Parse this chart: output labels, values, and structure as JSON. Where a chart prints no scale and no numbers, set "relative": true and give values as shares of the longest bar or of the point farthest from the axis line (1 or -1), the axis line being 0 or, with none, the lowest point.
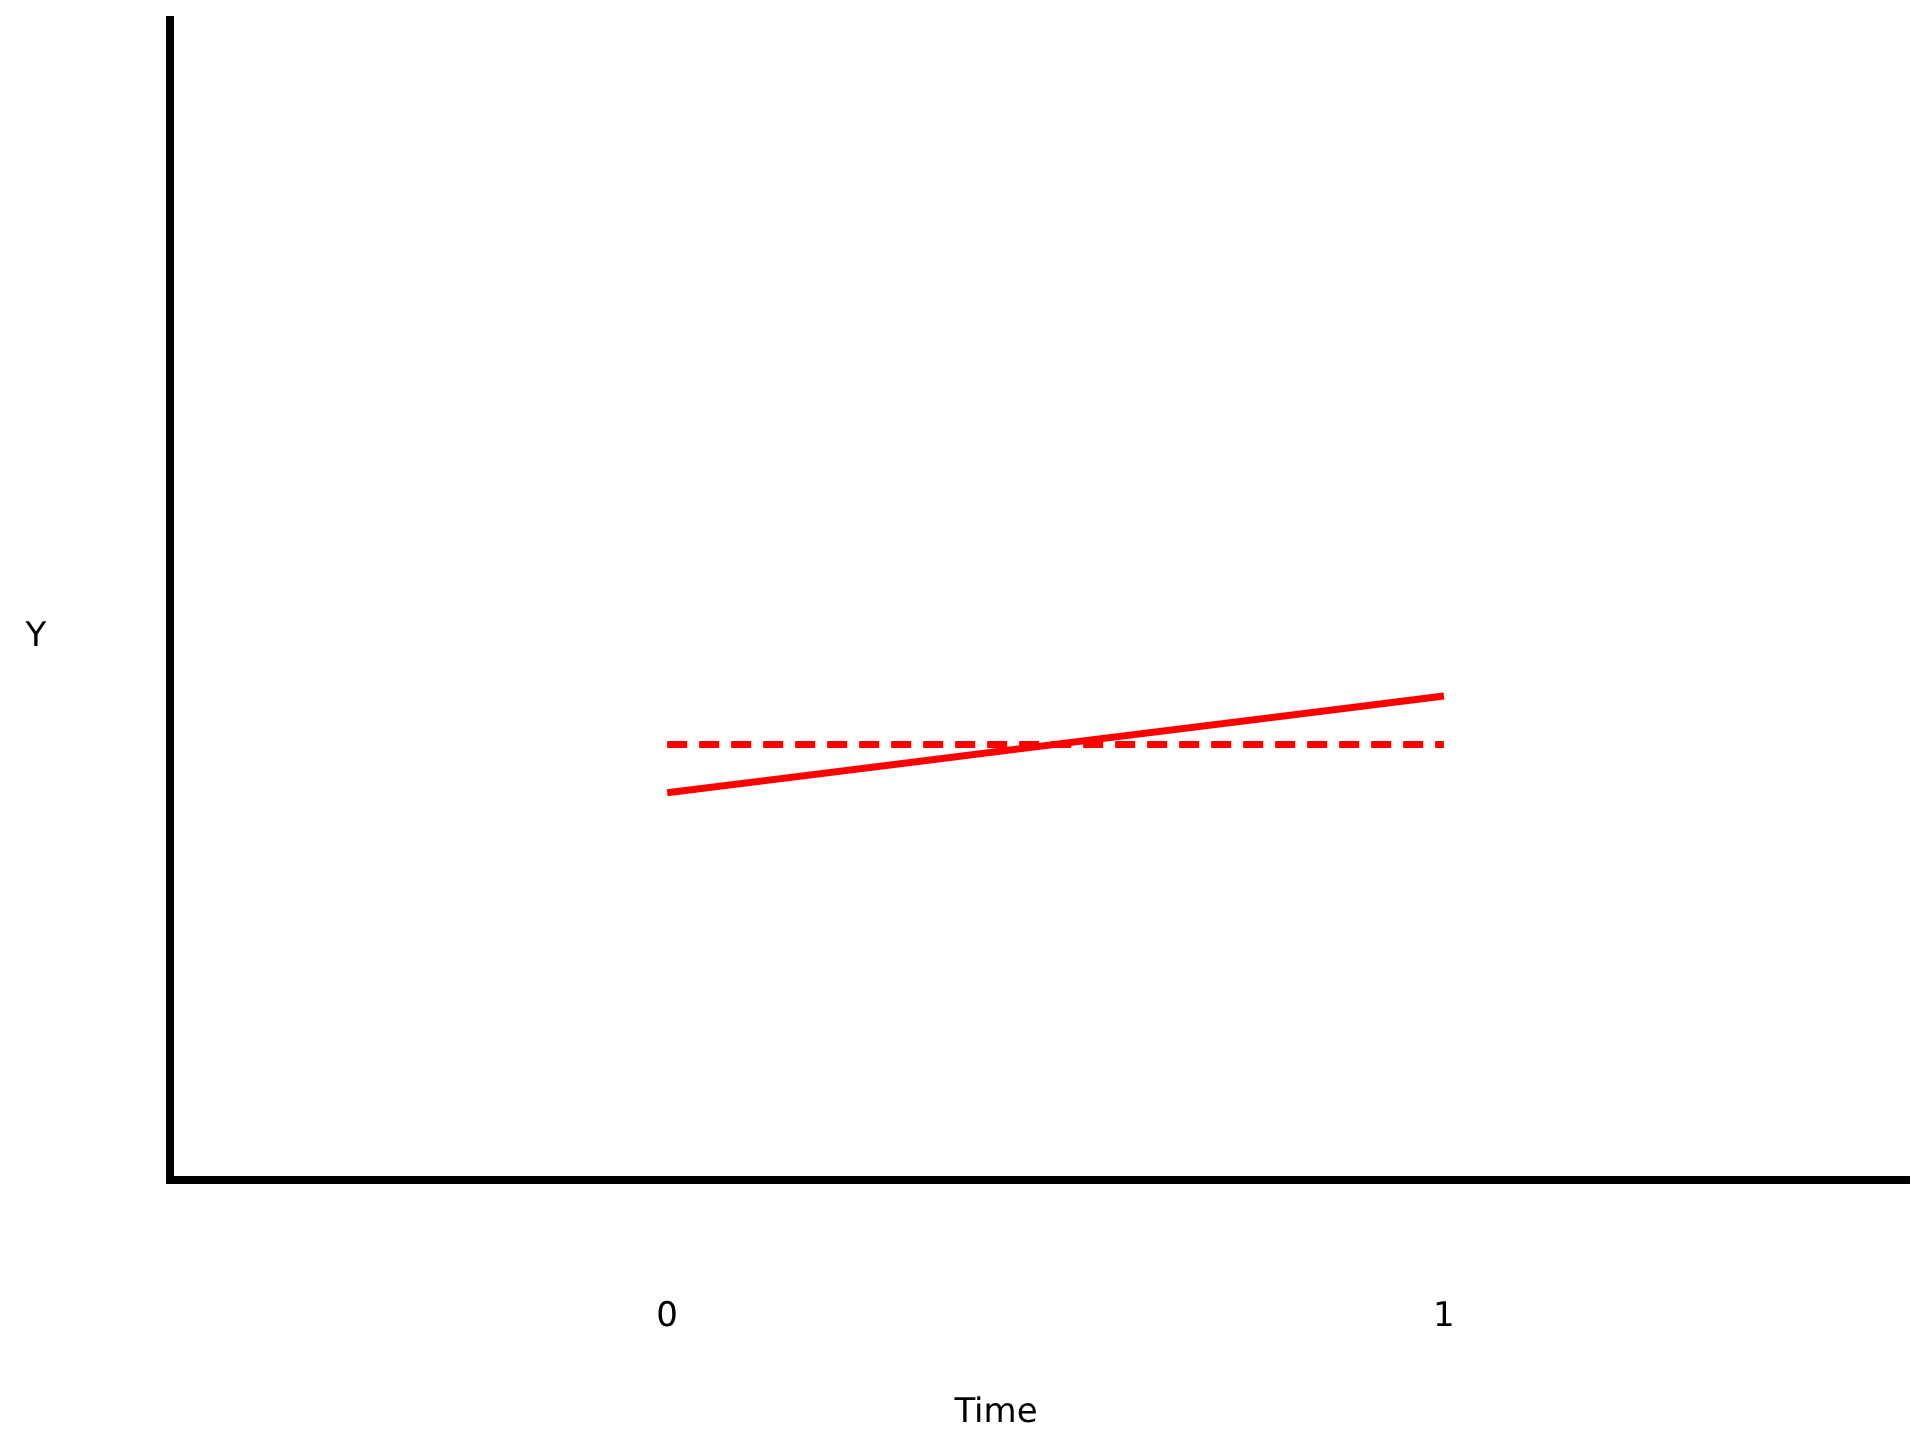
{
  "chart_data": {
    "type": "line",
    "xlabel": "Time",
    "ylabel": "Y",
    "relative": true,
    "x": [
      0,
      1
    ],
    "xlim": [
      -0.64,
      1.6
    ],
    "xticks": [
      0,
      1
    ],
    "grid": false,
    "marker": "none",
    "series": [
      {
        "color": "#ff0000",
        "values": [
          0.8,
          1
        ],
        "line_style": "solid"
      },
      {
        "color": "#ff0000",
        "values": [
          0.9,
          0.9
        ],
        "line_style": "dashed"
      }
    ]
  }
}
